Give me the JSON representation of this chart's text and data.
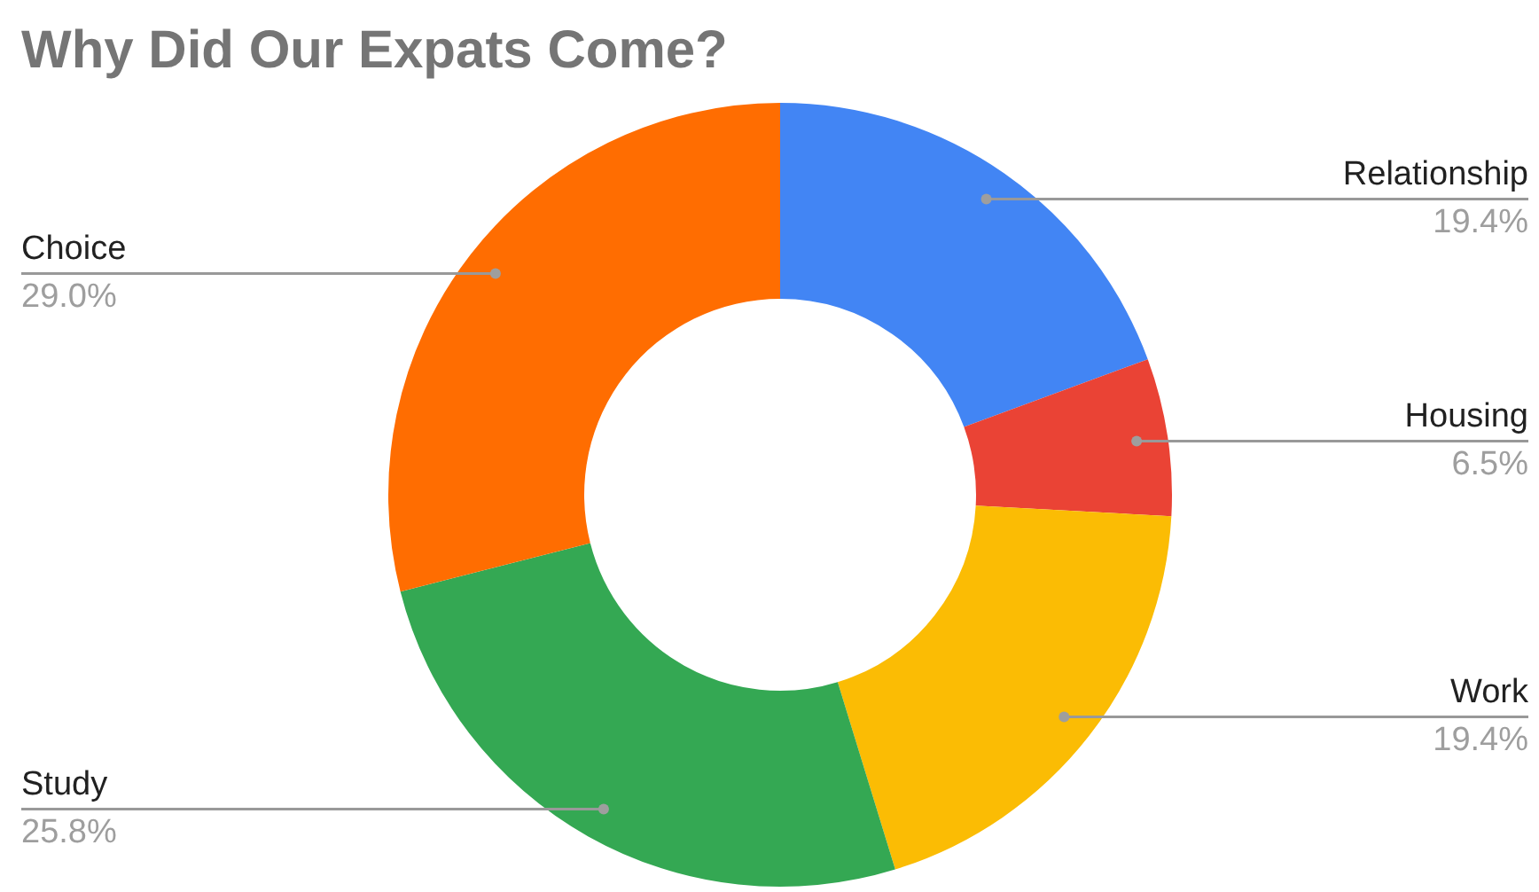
{
  "chart_data": {
    "type": "donut",
    "title": "Why Did Our Expats Come?",
    "categories": [
      "Relationship",
      "Housing",
      "Work",
      "Study",
      "Choice"
    ],
    "values": [
      19.4,
      6.5,
      19.4,
      25.8,
      29.0
    ],
    "value_labels": [
      "19.4%",
      "6.5%",
      "19.4%",
      "25.8%",
      "29.0%"
    ],
    "colors": [
      "#4285f4",
      "#ea4335",
      "#fbbc04",
      "#34a853",
      "#ff6d01"
    ],
    "legend": false
  }
}
